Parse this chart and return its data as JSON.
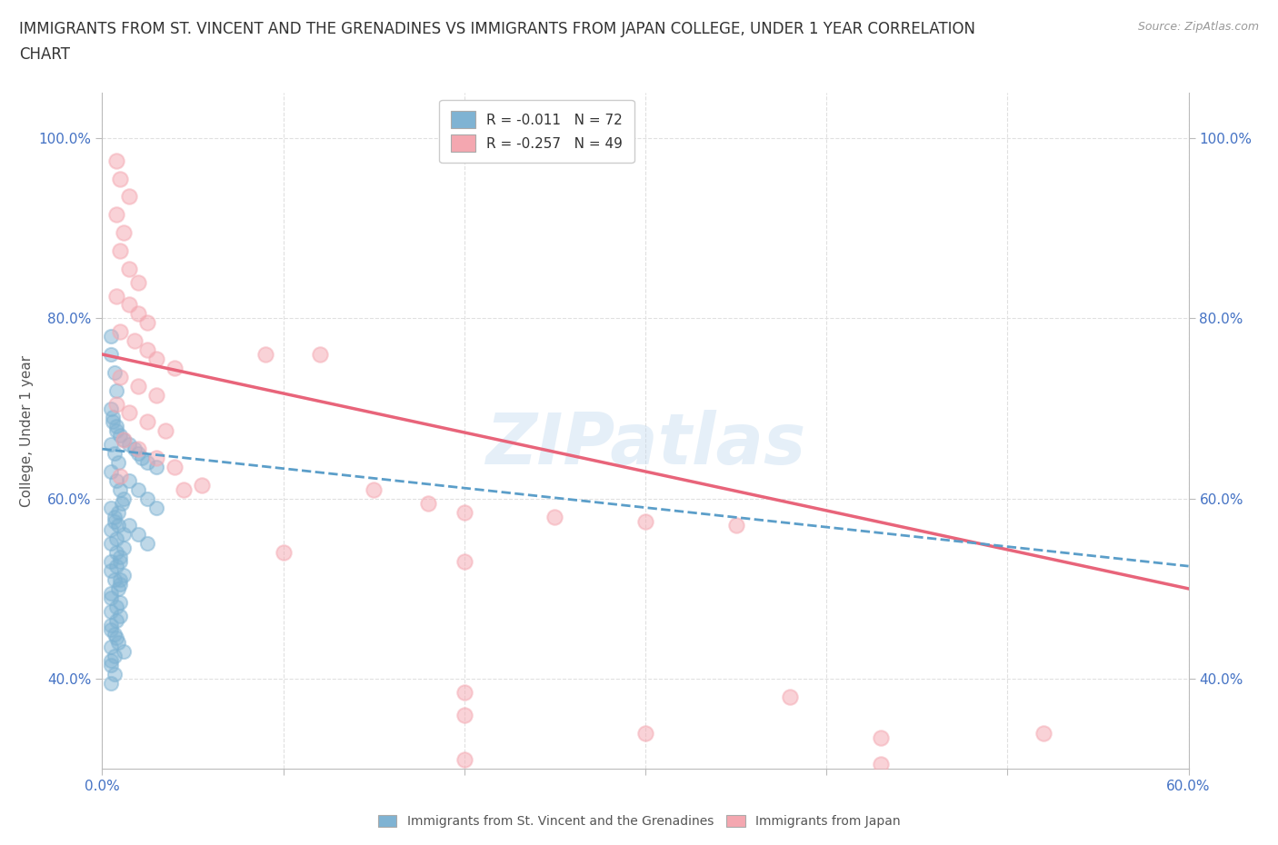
{
  "title_line1": "IMMIGRANTS FROM ST. VINCENT AND THE GRENADINES VS IMMIGRANTS FROM JAPAN COLLEGE, UNDER 1 YEAR CORRELATION",
  "title_line2": "CHART",
  "source": "Source: ZipAtlas.com",
  "ylabel": "College, Under 1 year",
  "xlim": [
    0.0,
    0.6
  ],
  "ylim": [
    0.3,
    1.05
  ],
  "xticks": [
    0.0,
    0.1,
    0.2,
    0.3,
    0.4,
    0.5,
    0.6
  ],
  "xticklabels": [
    "0.0%",
    "",
    "",
    "",
    "",
    "",
    "60.0%"
  ],
  "yticks": [
    0.4,
    0.6,
    0.8,
    1.0
  ],
  "yticklabels": [
    "40.0%",
    "60.0%",
    "80.0%",
    "100.0%"
  ],
  "blue_color": "#7fb3d3",
  "pink_color": "#f4a7b0",
  "trend_line_blue_color": "#5b9ec9",
  "trend_line_pink_color": "#e8647a",
  "R_blue": -0.011,
  "N_blue": 72,
  "R_pink": -0.257,
  "N_pink": 49,
  "legend_label_blue": "Immigrants from St. Vincent and the Grenadines",
  "legend_label_pink": "Immigrants from Japan",
  "watermark": "ZIPatlas",
  "background_color": "#ffffff",
  "blue_scatter": [
    [
      0.005,
      0.78
    ],
    [
      0.005,
      0.76
    ],
    [
      0.007,
      0.74
    ],
    [
      0.008,
      0.72
    ],
    [
      0.005,
      0.7
    ],
    [
      0.006,
      0.69
    ],
    [
      0.008,
      0.68
    ],
    [
      0.01,
      0.67
    ],
    [
      0.005,
      0.66
    ],
    [
      0.007,
      0.65
    ],
    [
      0.009,
      0.64
    ],
    [
      0.005,
      0.63
    ],
    [
      0.008,
      0.62
    ],
    [
      0.01,
      0.61
    ],
    [
      0.012,
      0.6
    ],
    [
      0.005,
      0.59
    ],
    [
      0.007,
      0.58
    ],
    [
      0.009,
      0.57
    ],
    [
      0.012,
      0.56
    ],
    [
      0.005,
      0.55
    ],
    [
      0.008,
      0.54
    ],
    [
      0.01,
      0.53
    ],
    [
      0.005,
      0.52
    ],
    [
      0.007,
      0.51
    ],
    [
      0.009,
      0.5
    ],
    [
      0.005,
      0.49
    ],
    [
      0.008,
      0.48
    ],
    [
      0.01,
      0.47
    ],
    [
      0.005,
      0.46
    ],
    [
      0.007,
      0.45
    ],
    [
      0.009,
      0.44
    ],
    [
      0.012,
      0.43
    ],
    [
      0.005,
      0.42
    ],
    [
      0.006,
      0.685
    ],
    [
      0.008,
      0.675
    ],
    [
      0.012,
      0.665
    ],
    [
      0.015,
      0.66
    ],
    [
      0.018,
      0.655
    ],
    [
      0.02,
      0.65
    ],
    [
      0.022,
      0.645
    ],
    [
      0.025,
      0.64
    ],
    [
      0.03,
      0.635
    ],
    [
      0.015,
      0.62
    ],
    [
      0.02,
      0.61
    ],
    [
      0.025,
      0.6
    ],
    [
      0.03,
      0.59
    ],
    [
      0.015,
      0.57
    ],
    [
      0.02,
      0.56
    ],
    [
      0.025,
      0.55
    ],
    [
      0.005,
      0.53
    ],
    [
      0.01,
      0.51
    ],
    [
      0.005,
      0.495
    ],
    [
      0.01,
      0.485
    ],
    [
      0.005,
      0.475
    ],
    [
      0.008,
      0.465
    ],
    [
      0.005,
      0.455
    ],
    [
      0.008,
      0.445
    ],
    [
      0.005,
      0.435
    ],
    [
      0.007,
      0.425
    ],
    [
      0.005,
      0.415
    ],
    [
      0.007,
      0.405
    ],
    [
      0.005,
      0.395
    ],
    [
      0.01,
      0.505
    ],
    [
      0.012,
      0.515
    ],
    [
      0.008,
      0.525
    ],
    [
      0.01,
      0.535
    ],
    [
      0.012,
      0.545
    ],
    [
      0.008,
      0.555
    ],
    [
      0.005,
      0.565
    ],
    [
      0.007,
      0.575
    ],
    [
      0.009,
      0.585
    ],
    [
      0.011,
      0.595
    ]
  ],
  "pink_scatter": [
    [
      0.008,
      0.975
    ],
    [
      0.01,
      0.955
    ],
    [
      0.015,
      0.935
    ],
    [
      0.008,
      0.915
    ],
    [
      0.012,
      0.895
    ],
    [
      0.01,
      0.875
    ],
    [
      0.015,
      0.855
    ],
    [
      0.02,
      0.84
    ],
    [
      0.008,
      0.825
    ],
    [
      0.015,
      0.815
    ],
    [
      0.02,
      0.805
    ],
    [
      0.025,
      0.795
    ],
    [
      0.01,
      0.785
    ],
    [
      0.018,
      0.775
    ],
    [
      0.025,
      0.765
    ],
    [
      0.03,
      0.755
    ],
    [
      0.04,
      0.745
    ],
    [
      0.01,
      0.735
    ],
    [
      0.02,
      0.725
    ],
    [
      0.03,
      0.715
    ],
    [
      0.008,
      0.705
    ],
    [
      0.015,
      0.695
    ],
    [
      0.025,
      0.685
    ],
    [
      0.035,
      0.675
    ],
    [
      0.012,
      0.665
    ],
    [
      0.02,
      0.655
    ],
    [
      0.03,
      0.645
    ],
    [
      0.04,
      0.635
    ],
    [
      0.01,
      0.625
    ],
    [
      0.055,
      0.615
    ],
    [
      0.045,
      0.61
    ],
    [
      0.09,
      0.76
    ],
    [
      0.12,
      0.76
    ],
    [
      0.15,
      0.61
    ],
    [
      0.18,
      0.595
    ],
    [
      0.2,
      0.585
    ],
    [
      0.25,
      0.58
    ],
    [
      0.3,
      0.575
    ],
    [
      0.35,
      0.57
    ],
    [
      0.2,
      0.385
    ],
    [
      0.38,
      0.38
    ],
    [
      0.2,
      0.36
    ],
    [
      0.3,
      0.34
    ],
    [
      0.2,
      0.31
    ],
    [
      0.43,
      0.305
    ],
    [
      0.52,
      0.34
    ],
    [
      0.1,
      0.54
    ],
    [
      0.2,
      0.53
    ],
    [
      0.43,
      0.335
    ]
  ],
  "pink_trend_x0": 0.0,
  "pink_trend_y0": 0.76,
  "pink_trend_x1": 0.6,
  "pink_trend_y1": 0.5,
  "blue_trend_x0": 0.0,
  "blue_trend_y0": 0.655,
  "blue_trend_x1": 0.6,
  "blue_trend_y1": 0.525,
  "grid_color": "#e0e0e0",
  "title_fontsize": 12,
  "axis_label_fontsize": 11,
  "tick_fontsize": 11,
  "legend_fontsize": 11
}
